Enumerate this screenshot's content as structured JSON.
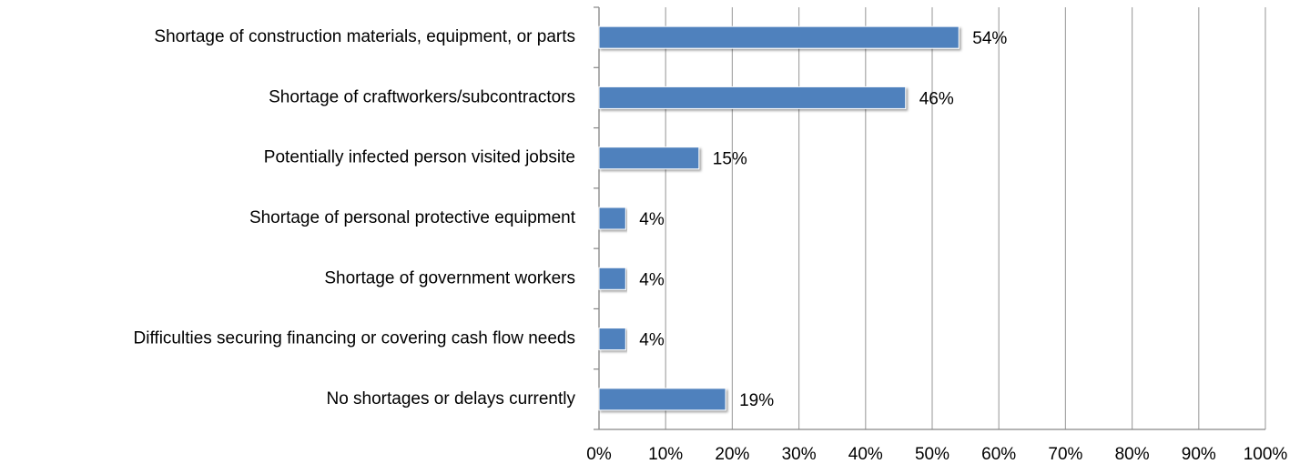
{
  "chart_data": {
    "type": "bar",
    "orientation": "horizontal",
    "categories": [
      "Shortage of construction materials, equipment, or parts",
      "Shortage of craftworkers/subcontractors",
      "Potentially infected person visited jobsite",
      "Shortage of personal protective equipment",
      "Shortage of government workers",
      "Difficulties securing financing or covering cash flow needs",
      "No shortages or delays currently"
    ],
    "values": [
      54,
      46,
      15,
      4,
      4,
      4,
      19
    ],
    "value_labels": [
      "54%",
      "46%",
      "15%",
      "4%",
      "4%",
      "4%",
      "19%"
    ],
    "color": "#4f81bd",
    "xlim": [
      0,
      100
    ],
    "xticks": [
      {
        "value": 0,
        "label": "0%"
      },
      {
        "value": 10,
        "label": "10%"
      },
      {
        "value": 20,
        "label": "20%"
      },
      {
        "value": 30,
        "label": "30%"
      },
      {
        "value": 40,
        "label": "40%"
      },
      {
        "value": 50,
        "label": "50%"
      },
      {
        "value": 60,
        "label": "60%"
      },
      {
        "value": 70,
        "label": "70%"
      },
      {
        "value": 80,
        "label": "80%"
      },
      {
        "value": 90,
        "label": "90%"
      },
      {
        "value": 100,
        "label": "100%"
      }
    ],
    "grid": true
  }
}
